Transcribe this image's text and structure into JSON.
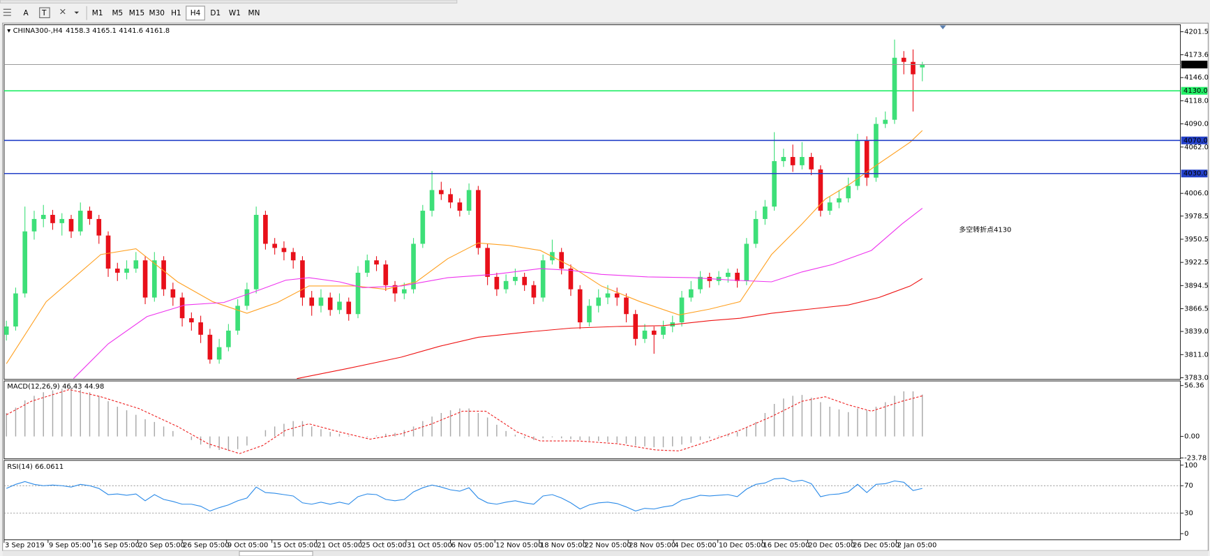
{
  "toolbar": {
    "tools": [
      "A",
      "T"
    ],
    "timeframes": [
      "M1",
      "M5",
      "M15",
      "M30",
      "H1",
      "H4",
      "D1",
      "W1",
      "MN"
    ],
    "active": "H4"
  },
  "chart_data": [
    {
      "type": "candlestick",
      "title": "CHINA300-,H4",
      "up_color": "#3ddf78",
      "down_color": "#e8101a",
      "last_price_color": "#9a9a9a",
      "open": [
        3835,
        3845,
        3885,
        3960,
        3975,
        3980,
        3970,
        3975,
        3960,
        3985,
        3975,
        3955,
        3915,
        3910,
        3915,
        3925,
        3880,
        3925,
        3890,
        3880,
        3855,
        3850,
        3835,
        3805,
        3820,
        3840,
        3870,
        3890,
        3980,
        3945,
        3940,
        3935,
        3925,
        3880,
        3870,
        3880,
        3865,
        3875,
        3860,
        3910,
        3925,
        3920,
        3895,
        3885,
        3890,
        3945,
        3985,
        4010,
        4005,
        3995,
        3985,
        4010,
        3940,
        3905,
        3890,
        3900,
        3905,
        3895,
        3880,
        3925,
        3935,
        3915,
        3890,
        3850,
        3870,
        3880,
        3885,
        3880,
        3860,
        3830,
        3840,
        3835,
        3845,
        3850,
        3880,
        3890,
        3905,
        3900,
        3905,
        3910,
        3900,
        3945,
        3975,
        3990,
        4045,
        4050,
        4040,
        4050,
        4035,
        3985,
        3995,
        4000,
        4015,
        4070,
        4025,
        4090,
        4095,
        4170,
        4165,
        4158.3
      ],
      "high": [
        3852,
        3892,
        3990,
        3985,
        3992,
        3986,
        3982,
        3980,
        3995,
        3990,
        3980,
        3960,
        3922,
        3925,
        3935,
        3930,
        3935,
        3930,
        3898,
        3886,
        3862,
        3858,
        3842,
        3830,
        3848,
        3878,
        3898,
        3990,
        3985,
        3952,
        3948,
        3940,
        3930,
        3888,
        3890,
        3886,
        3885,
        3880,
        3918,
        3932,
        3930,
        3925,
        3900,
        3898,
        3952,
        3992,
        4033,
        4020,
        4012,
        4000,
        4018,
        4015,
        3945,
        3910,
        3908,
        3915,
        3910,
        3900,
        3932,
        3950,
        3940,
        3920,
        3895,
        3878,
        3890,
        3895,
        3892,
        3885,
        3865,
        3848,
        3845,
        3852,
        3858,
        3888,
        3900,
        3912,
        3910,
        3912,
        3915,
        3915,
        3952,
        3985,
        3998,
        4080,
        4060,
        4065,
        4068,
        4055,
        4040,
        4002,
        4010,
        4025,
        4078,
        4075,
        4098,
        4105,
        4192,
        4178,
        4180,
        4165.1
      ],
      "low": [
        3828,
        3840,
        3880,
        3950,
        3965,
        3962,
        3955,
        3952,
        3955,
        3968,
        3945,
        3905,
        3900,
        3902,
        3910,
        3872,
        3875,
        3882,
        3870,
        3845,
        3840,
        3825,
        3800,
        3800,
        3815,
        3835,
        3865,
        3885,
        3938,
        3932,
        3925,
        3915,
        3870,
        3858,
        3862,
        3858,
        3860,
        3852,
        3855,
        3905,
        3912,
        3888,
        3875,
        3878,
        3885,
        3940,
        3978,
        3998,
        3988,
        3978,
        3980,
        3932,
        3895,
        3882,
        3885,
        3895,
        3888,
        3872,
        3875,
        3920,
        3908,
        3882,
        3842,
        3845,
        3862,
        3872,
        3870,
        3850,
        3822,
        3825,
        3812,
        3830,
        3838,
        3845,
        3875,
        3885,
        3892,
        3895,
        3898,
        3892,
        3895,
        3940,
        3968,
        3985,
        4038,
        4032,
        4035,
        4028,
        3978,
        3980,
        3988,
        3995,
        4010,
        4015,
        4020,
        4085,
        4090,
        4150,
        4105,
        4141.6
      ],
      "close": [
        3845,
        3885,
        3960,
        3975,
        3980,
        3970,
        3975,
        3960,
        3985,
        3975,
        3955,
        3915,
        3910,
        3915,
        3925,
        3880,
        3925,
        3890,
        3880,
        3855,
        3850,
        3835,
        3805,
        3820,
        3840,
        3870,
        3890,
        3980,
        3945,
        3940,
        3935,
        3925,
        3880,
        3870,
        3880,
        3865,
        3875,
        3860,
        3910,
        3925,
        3920,
        3895,
        3885,
        3890,
        3945,
        3985,
        4010,
        4005,
        3995,
        3985,
        4010,
        3940,
        3905,
        3890,
        3900,
        3905,
        3895,
        3880,
        3925,
        3935,
        3915,
        3890,
        3850,
        3870,
        3880,
        3885,
        3880,
        3860,
        3830,
        3840,
        3835,
        3845,
        3850,
        3880,
        3890,
        3905,
        3900,
        3905,
        3910,
        3900,
        3945,
        3975,
        3990,
        4045,
        4050,
        4040,
        4050,
        4035,
        3985,
        3995,
        4000,
        4015,
        4070,
        4025,
        4090,
        4095,
        4170,
        4165,
        4150,
        4161.8
      ],
      "lines": [
        {
          "color": "#ffa020",
          "x": [
            0,
            4.3,
            10.2,
            14,
            18.5,
            22.3,
            26,
            29.3,
            32.7,
            37.7,
            41,
            44.3,
            47.7,
            51,
            54.3,
            57.7,
            61,
            64.3,
            68.5,
            72.7,
            76,
            79.3,
            82.7,
            86,
            88.5,
            91,
            94.3,
            97.7,
            99
          ],
          "values": [
            3800,
            3875,
            3932,
            3939,
            3899,
            3875,
            3861,
            3874,
            3894,
            3894,
            3890,
            3899,
            3927,
            3946,
            3943,
            3937,
            3918,
            3894,
            3875,
            3859,
            3866,
            3875,
            3932,
            3969,
            3999,
            4016,
            4042,
            4068,
            4082
          ]
        },
        {
          "color": "#ee33ee",
          "x": [
            7.25,
            11,
            15.2,
            19.3,
            23.5,
            26.8,
            30.2,
            32.7,
            36,
            38.5,
            42.7,
            47.7,
            52.7,
            57.7,
            61,
            64.3,
            69.3,
            74.3,
            78.5,
            82.7,
            86,
            89.3,
            93.5,
            96.8,
            99
          ],
          "values": [
            3782,
            3824,
            3857,
            3871,
            3874,
            3887,
            3901,
            3904,
            3899,
            3892,
            3894,
            3904,
            3908,
            3915,
            3913,
            3908,
            3905,
            3904,
            3901,
            3899,
            3911,
            3920,
            3937,
            3969,
            3988
          ]
        },
        {
          "color": "#ee1111",
          "x": [
            31.4,
            36.8,
            42.7,
            46.8,
            51,
            56,
            61,
            66,
            71,
            76,
            79.3,
            82.7,
            86.8,
            91,
            94.3,
            97.7,
            99
          ],
          "values": [
            3782,
            3794,
            3808,
            3821,
            3832,
            3838,
            3843,
            3845,
            3846,
            3852,
            3855,
            3861,
            3866,
            3871,
            3880,
            3894,
            3903
          ]
        }
      ],
      "hlines": [
        {
          "value": 4130,
          "label": "4130.0",
          "color": "#22ee66"
        },
        {
          "value": 4070,
          "label": "4070.0",
          "color": "#2340c8"
        },
        {
          "value": 4030,
          "label": "4030.0",
          "color": "#2340c8"
        }
      ],
      "annotation": {
        "text": "多空转折点4130",
        "color": "#ff1a1a"
      },
      "xlim": [
        -0.25,
        126.9
      ],
      "xticks": [
        {
          "value": -0.25,
          "label": "3 Sep 2019"
        },
        {
          "value": 4.5,
          "label": "9 Sep 05:00"
        },
        {
          "value": 9.3,
          "label": "16 Sep 05:00"
        },
        {
          "value": 14.2,
          "label": "20 Sep 05:00"
        },
        {
          "value": 19,
          "label": "26 Sep 05:00"
        },
        {
          "value": 23.8,
          "label": "9 Oct 05:00"
        },
        {
          "value": 28.7,
          "label": "15 Oct 05:00"
        },
        {
          "value": 33.5,
          "label": "21 Oct 05:00"
        },
        {
          "value": 38.3,
          "label": "25 Oct 05:00"
        },
        {
          "value": 43.2,
          "label": "31 Oct 05:00"
        },
        {
          "value": 48,
          "label": "6 Nov 05:00"
        },
        {
          "value": 52.8,
          "label": "12 Nov 05:00"
        },
        {
          "value": 57.6,
          "label": "18 Nov 05:00"
        },
        {
          "value": 62.4,
          "label": "22 Nov 05:00"
        },
        {
          "value": 67.2,
          "label": "28 Nov 05:00"
        },
        {
          "value": 72.1,
          "label": "4 Dec 05:00"
        },
        {
          "value": 76.9,
          "label": "10 Dec 05:00"
        },
        {
          "value": 81.7,
          "label": "16 Dec 05:00"
        },
        {
          "value": 86.6,
          "label": "20 Dec 05:00"
        },
        {
          "value": 91.4,
          "label": "26 Dec 05:00"
        },
        {
          "value": 96.2,
          "label": "2 Jan 05:00"
        }
      ],
      "ylim": [
        3781,
        4210
      ],
      "yticks": [
        4201.5,
        4173.6,
        {
          "value": 4146,
          "label": "4146.0"
        },
        {
          "value": 4118,
          "label": "4118.0"
        },
        {
          "value": 4090,
          "label": "4090.0"
        },
        {
          "value": 4062,
          "label": "4062.0"
        },
        {
          "value": 4006,
          "label": "4006.0"
        },
        3978.5,
        3950.5,
        3922.5,
        3894.5,
        3866.5,
        {
          "value": 3839,
          "label": "3839.0"
        },
        {
          "value": 3811,
          "label": "3811.0"
        },
        {
          "value": 3783,
          "label": "3783.0"
        }
      ],
      "grid": false
    },
    {
      "type": "macd",
      "title": "MACD(12,26,9)",
      "bar_color": "#a8a8a8",
      "values": [
        26,
        32,
        40,
        45,
        49,
        51,
        53,
        54,
        52,
        49,
        45,
        39,
        33,
        29,
        24,
        19,
        16,
        11,
        6,
        0,
        -4,
        -9,
        -13,
        -15,
        -16,
        -14,
        -10,
        0,
        7,
        11,
        14,
        17,
        17,
        11,
        8,
        5,
        3,
        1,
        0,
        -1,
        1,
        3,
        4,
        7,
        11,
        17,
        22,
        26,
        29,
        31,
        31,
        26,
        21,
        13,
        6,
        2,
        -2,
        -4,
        -2,
        -1,
        -2,
        -3,
        -4,
        -5,
        -5,
        -6,
        -7,
        -8,
        -10,
        -11,
        -12,
        -12,
        -11,
        -9,
        -7,
        -4,
        -2,
        1,
        3,
        5,
        10,
        16,
        26,
        36,
        42,
        45,
        46,
        43,
        38,
        33,
        30,
        27,
        31,
        29,
        33,
        38,
        45,
        50,
        50,
        46.43
      ],
      "signal": {
        "color": "#ee2222",
        "x": [
          0,
          2.7,
          6.8,
          10.2,
          14.3,
          18.5,
          21.8,
          25.2,
          27.7,
          30.2,
          32.7,
          36,
          39.3,
          42.7,
          46,
          49.3,
          51.8,
          55.2,
          57.7,
          61.8,
          66,
          70.2,
          72.7,
          76,
          79.3,
          82.7,
          86,
          88.5,
          91,
          93.5,
          96.8,
          99
        ],
        "values": [
          24,
          39,
          52,
          44,
          31,
          11,
          -8,
          -19,
          -10,
          7,
          14,
          5,
          -3,
          3,
          14,
          28,
          28,
          5,
          -5,
          -5,
          -8,
          -15,
          -16,
          -5,
          7,
          22,
          39,
          44,
          35,
          28,
          39,
          44.98
        ]
      },
      "ylim": [
        -24.8,
        61.5
      ],
      "yticks": [
        56.36,
        {
          "value": 0,
          "label": "0.00"
        },
        -23.78
      ]
    },
    {
      "type": "line",
      "title": "RSI(14)",
      "color": "#2a8ae8",
      "values": [
        66,
        72,
        76,
        72,
        70,
        71,
        70,
        68,
        72,
        70,
        66,
        57,
        58,
        56,
        58,
        48,
        57,
        50,
        47,
        43,
        43,
        40,
        33,
        38,
        42,
        48,
        52,
        68,
        60,
        59,
        57,
        55,
        45,
        43,
        46,
        43,
        46,
        43,
        54,
        58,
        57,
        50,
        48,
        50,
        61,
        67,
        71,
        68,
        64,
        62,
        67,
        52,
        45,
        43,
        46,
        48,
        45,
        43,
        55,
        57,
        52,
        45,
        36,
        42,
        45,
        46,
        44,
        39,
        33,
        37,
        36,
        39,
        41,
        49,
        52,
        56,
        55,
        56,
        57,
        54,
        65,
        72,
        74,
        80,
        81,
        76,
        78,
        73,
        54,
        57,
        58,
        61,
        72,
        60,
        72,
        73,
        77,
        75,
        63,
        66.0611
      ],
      "levels": [
        70,
        30
      ],
      "ylim": [
        -9,
        107
      ],
      "yticks": [
        100,
        70,
        30,
        0
      ]
    }
  ]
}
